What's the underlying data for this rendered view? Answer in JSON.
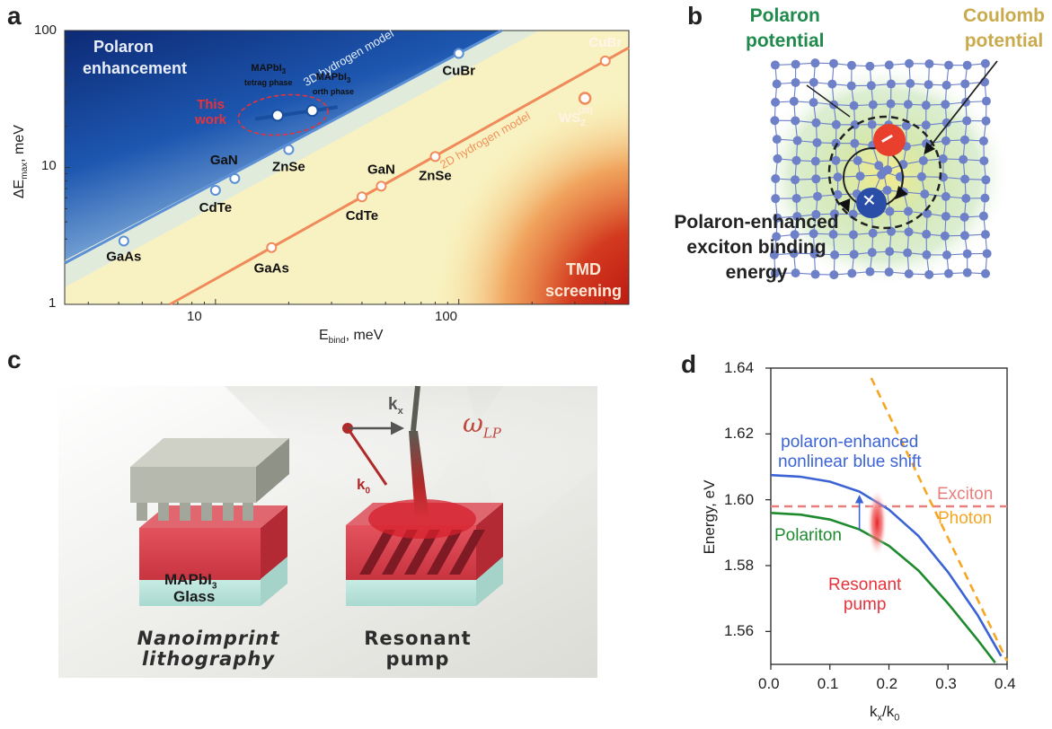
{
  "panels": {
    "a": "a",
    "b": "b",
    "c": "c",
    "d": "d"
  },
  "panel_a": {
    "x_tick_labels": [
      "10",
      "100"
    ],
    "y_tick_labels": [
      "1",
      "10",
      "100"
    ],
    "xlabel": {
      "main": "E",
      "sub": "bind",
      "rest": ", meV"
    },
    "ylabel": {
      "main": "ΔE",
      "sub": "max",
      "rest": ", meV"
    },
    "region_polaron": [
      "Polaron",
      "enhancement"
    ],
    "region_tmd": [
      "TMD",
      "screening"
    ],
    "model_3d": "3D hydrogen model",
    "model_2d": "2D hydrogen model",
    "this_work": [
      "This",
      "work"
    ],
    "mapbi3_tetrag": {
      "main": "MAPbI",
      "sub": "3",
      "phase": "tetrag phase"
    },
    "mapbi3_orth": {
      "main": "MAPbI",
      "sub": "3",
      "phase": "orth phase"
    },
    "points_3d": [
      {
        "label": "GaAs",
        "x": 4.2,
        "y": 2.9
      },
      {
        "label": "CdTe",
        "x": 10,
        "y": 6.8
      },
      {
        "label": "GaN",
        "x": 12,
        "y": 8.3
      },
      {
        "label": "ZnSe",
        "x": 20,
        "y": 13.5
      },
      {
        "label": "CuBr",
        "x": 100,
        "y": 68
      }
    ],
    "points_2d": [
      {
        "label": "GaAs",
        "x": 17,
        "y": 2.6
      },
      {
        "label": "CdTe",
        "x": 40,
        "y": 6.1
      },
      {
        "label": "GaN",
        "x": 48,
        "y": 7.3
      },
      {
        "label": "ZnSe",
        "x": 80,
        "y": 12
      },
      {
        "label": "CuBr",
        "x": 400,
        "y": 60
      }
    ],
    "ws2": {
      "label": "WS",
      "sub": "2",
      "sup": "[20]",
      "x": 330,
      "y": 32
    },
    "mapbi3_points": [
      {
        "x": 18,
        "y": 24
      },
      {
        "x": 25,
        "y": 26
      }
    ],
    "line_3d": {
      "x": [
        2.4,
        150
      ],
      "y": [
        2.0,
        100
      ]
    },
    "line_2d": {
      "x": [
        6.5,
        500
      ],
      "y": [
        1.0,
        75
      ]
    }
  },
  "panel_b": {
    "title_polaron": [
      "Polaron",
      "potential"
    ],
    "title_coulomb": [
      "Coulomb",
      "potential"
    ],
    "caption": [
      "Polaron-enhanced",
      "exciton binding",
      "energy"
    ],
    "minus_glyph": "−",
    "plus_glyph": "+",
    "colors": {
      "polaron": "#1f8a4c",
      "coulomb": "#c9aa4d",
      "lattice": "#6d80c8",
      "electron": "#e8402c",
      "hole": "#2a4ea8"
    }
  },
  "panel_c": {
    "kx": {
      "main": "k",
      "sub": "x"
    },
    "k0": {
      "main": "k",
      "sub": "0"
    },
    "omega": {
      "main": "ω",
      "sub": "LP"
    },
    "mapbi3": {
      "main": "MAPbI",
      "sub": "3"
    },
    "glass": "Glass",
    "caption_left": [
      "Nanoimprint",
      "lithography"
    ],
    "caption_right": [
      "Resonant",
      "pump"
    ]
  },
  "chart_data": {
    "type": "line",
    "xlabel": "k_x/k_0",
    "ylabel": "Energy, eV",
    "xlim": [
      0.0,
      0.4
    ],
    "ylim": [
      1.55,
      1.64
    ],
    "x_ticks": [
      "0.0",
      "0.1",
      "0.2",
      "0.3",
      "0.4"
    ],
    "y_ticks": [
      "1.56",
      "1.58",
      "1.60",
      "1.62",
      "1.64"
    ],
    "series": [
      {
        "name": "Exciton",
        "style": "dashed",
        "color": "#e77f7f",
        "x": [
          0,
          0.4
        ],
        "y": [
          1.598,
          1.598
        ]
      },
      {
        "name": "Photon",
        "style": "dashed",
        "color": "#f5a623",
        "x": [
          0.17,
          0.4
        ],
        "y": [
          1.637,
          1.551
        ]
      },
      {
        "name": "Polariton",
        "style": "solid",
        "color": "#1e8a2e",
        "x": [
          0,
          0.05,
          0.1,
          0.15,
          0.2,
          0.25,
          0.3,
          0.35,
          0.38
        ],
        "y": [
          1.596,
          1.5955,
          1.594,
          1.591,
          1.586,
          1.5785,
          1.5685,
          1.5575,
          1.5505
        ]
      },
      {
        "name": "polaron-enhanced nonlinear blue shift",
        "style": "solid",
        "color": "#3b63d6",
        "x": [
          0,
          0.05,
          0.1,
          0.15,
          0.2,
          0.25,
          0.3,
          0.35,
          0.39
        ],
        "y": [
          1.6075,
          1.607,
          1.6055,
          1.6025,
          1.597,
          1.589,
          1.578,
          1.565,
          1.5525
        ]
      }
    ],
    "annotations": {
      "blueshift": [
        "polaron-enhanced",
        "nonlinear blue shift"
      ],
      "exciton": "Exciton",
      "photon": "Photon",
      "polariton": "Polariton",
      "pump": [
        "Resonant",
        "pump"
      ],
      "arrow": {
        "x": 0.15,
        "from": 1.591,
        "to": 1.601
      },
      "pump_spot": {
        "x": 0.18,
        "y": 1.593
      }
    }
  }
}
